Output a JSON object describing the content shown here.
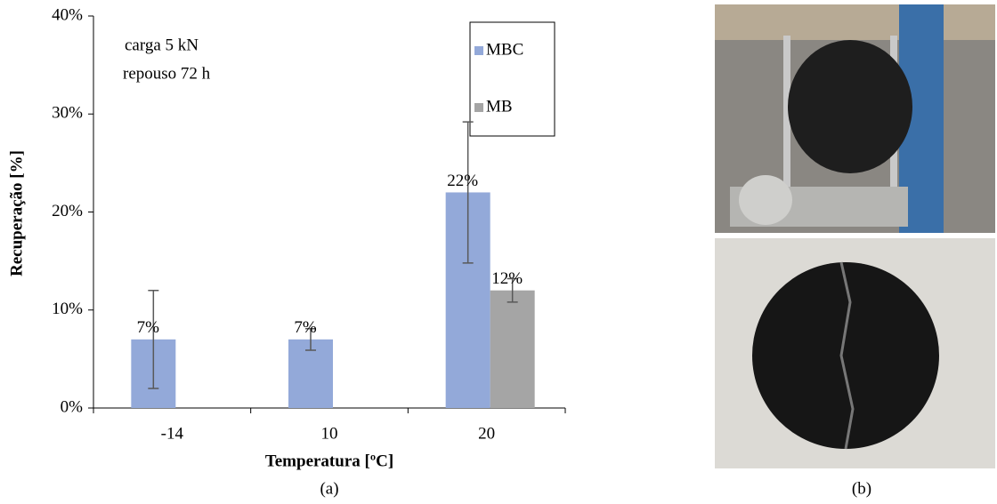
{
  "chart_data": {
    "type": "bar",
    "xlabel": "Temperatura [ºC]",
    "ylabel": "Recuperação [%]",
    "annotations": [
      "carga 5 kN",
      "repouso 72 h"
    ],
    "categories": [
      "-14",
      "10",
      "20"
    ],
    "series": [
      {
        "name": "MBC",
        "color": "#93a9d9",
        "values": [
          7,
          7,
          22
        ],
        "errors": [
          5,
          1.1,
          7.2
        ],
        "value_labels": [
          "7%",
          "7%",
          "22%"
        ]
      },
      {
        "name": "MB",
        "color": "#a5a5a5",
        "values": [
          null,
          null,
          12
        ],
        "errors": [
          null,
          null,
          1.2
        ],
        "value_labels": [
          null,
          null,
          "12%"
        ]
      }
    ],
    "ylim": [
      0,
      40
    ],
    "yticks": [
      {
        "value": 0,
        "label": "0%"
      },
      {
        "value": 10,
        "label": "10%"
      },
      {
        "value": 20,
        "label": "20%"
      },
      {
        "value": 30,
        "label": "30%"
      },
      {
        "value": 40,
        "label": "40%"
      }
    ],
    "grid": false,
    "legend": "top-right"
  },
  "figure": {
    "caption_a": "(a)",
    "caption_b": "(b)"
  }
}
